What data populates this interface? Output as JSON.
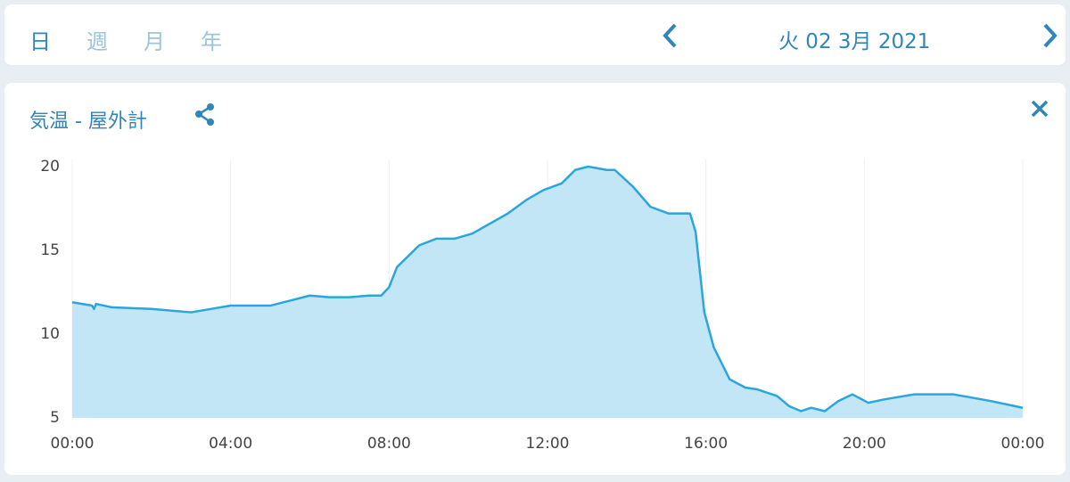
{
  "tabs": [
    "日",
    "週",
    "月",
    "年"
  ],
  "date": "火 02 3月 2021",
  "chart_data": {
    "type": "area",
    "title": "気温 - 屋外計",
    "x": [
      0,
      0.5,
      0.55,
      0.6,
      1,
      2,
      3,
      3.5,
      4,
      5,
      5.5,
      6,
      6.5,
      7,
      7.5,
      7.8,
      8,
      8.2,
      8.76,
      9.2,
      9.66,
      10.1,
      11,
      11.46,
      11.9,
      12.36,
      12.7,
      13.03,
      13.5,
      13.7,
      14.16,
      14.6,
      15.06,
      15.6,
      15.74,
      15.96,
      16.2,
      16.6,
      17,
      17.3,
      17.8,
      18.1,
      18.4,
      18.66,
      19,
      19.34,
      19.7,
      20.1,
      20.5,
      21.25,
      22.26,
      23.2,
      24
    ],
    "values": [
      11.9,
      11.7,
      11.5,
      11.8,
      11.6,
      11.5,
      11.3,
      11.5,
      11.7,
      11.7,
      12.0,
      12.3,
      12.2,
      12.2,
      12.3,
      12.3,
      12.8,
      14.0,
      15.3,
      15.7,
      15.7,
      16.0,
      17.2,
      18.0,
      18.6,
      19.0,
      19.8,
      20.0,
      19.8,
      19.8,
      18.8,
      17.6,
      17.2,
      17.2,
      16.1,
      11.3,
      9.2,
      7.3,
      6.8,
      6.7,
      6.3,
      5.7,
      5.4,
      5.6,
      5.4,
      6.0,
      6.4,
      5.9,
      6.1,
      6.4,
      6.4,
      6.0,
      5.6
    ],
    "color": "#2aa6dc",
    "fill": "#c2e6f6",
    "xlim": [
      0,
      24
    ],
    "xticks": [
      {
        "value": 0,
        "label": "00:00"
      },
      {
        "value": 4,
        "label": "04:00"
      },
      {
        "value": 8,
        "label": "08:00"
      },
      {
        "value": 12,
        "label": "12:00"
      },
      {
        "value": 16,
        "label": "16:00"
      },
      {
        "value": 20,
        "label": "20:00"
      },
      {
        "value": 24,
        "label": "00:00"
      }
    ],
    "ylim": [
      5,
      20
    ],
    "yticks": [
      5,
      10,
      15,
      20
    ],
    "xgrid": true
  }
}
